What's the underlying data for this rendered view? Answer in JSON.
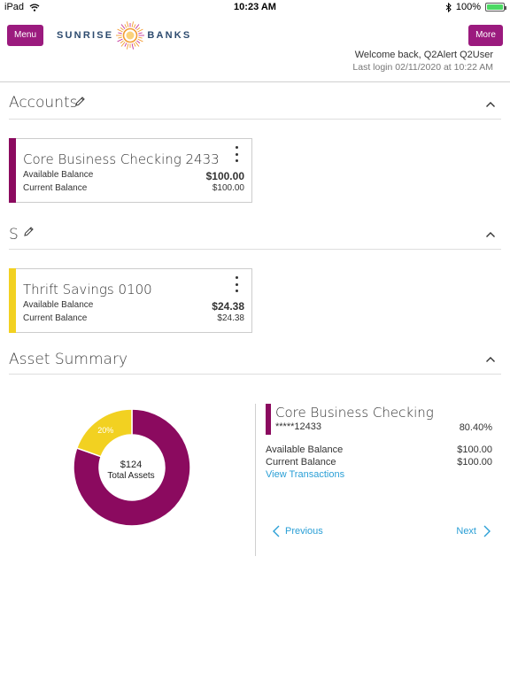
{
  "status_bar": {
    "device": "iPad",
    "time": "10:23 AM",
    "battery": "100%",
    "battery_level": 1.0
  },
  "header": {
    "menu_label": "Menu",
    "more_label": "More",
    "logo_left": "SUNRISE",
    "logo_right": "BANKS",
    "welcome": "Welcome back, Q2Alert Q2User",
    "last_login": "Last login 02/11/2020 at 10:22 AM"
  },
  "colors": {
    "brand_purple": "#9b1a7e",
    "checking_stripe": "#8b0a5f",
    "savings_stripe": "#f2d121",
    "link": "#2a9fd6"
  },
  "accounts_section": {
    "title": "Accounts",
    "cards": [
      {
        "name": "Core Business Checking 2433",
        "available_label": "Available Balance",
        "available_value": "$100.00",
        "current_label": "Current Balance",
        "current_value": "$100.00"
      }
    ]
  },
  "savings_section": {
    "title": "S",
    "cards": [
      {
        "name": "Thrift Savings 0100",
        "available_label": "Available Balance",
        "available_value": "$24.38",
        "current_label": "Current Balance",
        "current_value": "$24.38"
      }
    ]
  },
  "asset_summary": {
    "title": "Asset Summary",
    "total_amount": "$124",
    "total_label": "Total Assets",
    "detail": {
      "name": "Core Business Checking",
      "account": "*****12433",
      "percent": "80.40%",
      "available_label": "Available Balance",
      "available_value": "$100.00",
      "current_label": "Current Balance",
      "current_value": "$100.00",
      "view_transactions": "View Transactions"
    },
    "previous_label": "Previous",
    "next_label": "Next"
  },
  "chart_data": {
    "type": "pie",
    "categories": [
      "Core Business Checking",
      "Thrift Savings"
    ],
    "values": [
      80.4,
      19.6
    ],
    "slice_labels": [
      "80%",
      "20%"
    ],
    "colors": [
      "#8b0a5f",
      "#f2d121"
    ]
  },
  "icons": {
    "edit": "pencil-icon",
    "collapse": "chevron-up-icon",
    "card_menu": "kebab-menu-icon",
    "prev": "chevron-left-icon",
    "next": "chevron-right-icon"
  }
}
